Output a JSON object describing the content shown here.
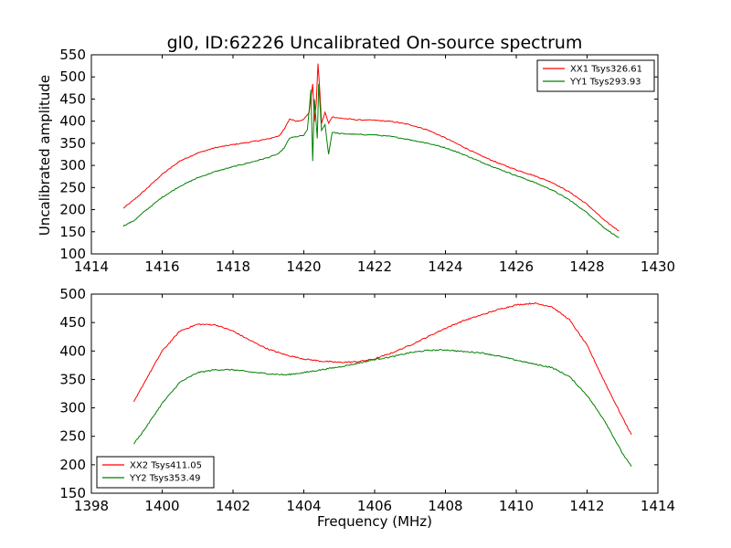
{
  "chart_data": [
    {
      "type": "line",
      "title": "gl0, ID:62226 Uncalibrated On-source spectrum",
      "xlabel": "",
      "ylabel": "Uncalibrated amplitude",
      "xlim": [
        1414,
        1430
      ],
      "ylim": [
        100,
        550
      ],
      "xticks": [
        1414,
        1416,
        1418,
        1420,
        1422,
        1424,
        1426,
        1428,
        1430
      ],
      "yticks": [
        100,
        150,
        200,
        250,
        300,
        350,
        400,
        450,
        500,
        550
      ],
      "legend_position": "top-right",
      "series": [
        {
          "name": "XX1 Tsys326.61",
          "color": "#ff0000",
          "points": [
            [
              1414.9,
              203
            ],
            [
              1415.2,
              222
            ],
            [
              1415.5,
              243
            ],
            [
              1416.0,
              280
            ],
            [
              1416.5,
              310
            ],
            [
              1417.0,
              328
            ],
            [
              1417.5,
              340
            ],
            [
              1418.0,
              347
            ],
            [
              1418.5,
              353
            ],
            [
              1419.0,
              360
            ],
            [
              1419.3,
              367
            ],
            [
              1419.45,
              382
            ],
            [
              1419.6,
              405
            ],
            [
              1419.8,
              400
            ],
            [
              1420.0,
              404
            ],
            [
              1420.15,
              420
            ],
            [
              1420.25,
              485
            ],
            [
              1420.3,
              400
            ],
            [
              1420.35,
              440
            ],
            [
              1420.4,
              530
            ],
            [
              1420.45,
              470
            ],
            [
              1420.5,
              395
            ],
            [
              1420.6,
              420
            ],
            [
              1420.7,
              395
            ],
            [
              1420.8,
              410
            ],
            [
              1421.0,
              407
            ],
            [
              1421.5,
              403
            ],
            [
              1422.0,
              402
            ],
            [
              1422.5,
              399
            ],
            [
              1423.0,
              392
            ],
            [
              1423.5,
              380
            ],
            [
              1424.0,
              362
            ],
            [
              1424.5,
              342
            ],
            [
              1425.0,
              322
            ],
            [
              1425.5,
              305
            ],
            [
              1426.0,
              290
            ],
            [
              1426.5,
              277
            ],
            [
              1427.0,
              262
            ],
            [
              1427.5,
              240
            ],
            [
              1428.0,
              212
            ],
            [
              1428.5,
              175
            ],
            [
              1428.9,
              152
            ]
          ]
        },
        {
          "name": "YY1 Tsys293.93",
          "color": "#008000",
          "points": [
            [
              1414.9,
              163
            ],
            [
              1415.2,
              175
            ],
            [
              1415.5,
              196
            ],
            [
              1416.0,
              228
            ],
            [
              1416.5,
              253
            ],
            [
              1417.0,
              272
            ],
            [
              1417.5,
              286
            ],
            [
              1418.0,
              297
            ],
            [
              1418.5,
              307
            ],
            [
              1419.0,
              318
            ],
            [
              1419.3,
              327
            ],
            [
              1419.45,
              340
            ],
            [
              1419.6,
              362
            ],
            [
              1419.8,
              365
            ],
            [
              1420.0,
              368
            ],
            [
              1420.1,
              380
            ],
            [
              1420.2,
              470
            ],
            [
              1420.25,
              310
            ],
            [
              1420.3,
              450
            ],
            [
              1420.38,
              360
            ],
            [
              1420.42,
              485
            ],
            [
              1420.5,
              380
            ],
            [
              1420.6,
              392
            ],
            [
              1420.7,
              325
            ],
            [
              1420.8,
              375
            ],
            [
              1421.0,
              372
            ],
            [
              1421.5,
              370
            ],
            [
              1422.0,
              369
            ],
            [
              1422.5,
              365
            ],
            [
              1423.0,
              358
            ],
            [
              1423.5,
              350
            ],
            [
              1424.0,
              340
            ],
            [
              1424.5,
              325
            ],
            [
              1425.0,
              308
            ],
            [
              1425.5,
              292
            ],
            [
              1426.0,
              277
            ],
            [
              1426.5,
              262
            ],
            [
              1427.0,
              245
            ],
            [
              1427.5,
              222
            ],
            [
              1428.0,
              193
            ],
            [
              1428.5,
              158
            ],
            [
              1428.9,
              136
            ]
          ]
        }
      ]
    },
    {
      "type": "line",
      "title": "",
      "xlabel": "Frequency (MHz)",
      "ylabel": "",
      "xlim": [
        1398,
        1414
      ],
      "ylim": [
        150,
        500
      ],
      "xticks": [
        1398,
        1400,
        1402,
        1404,
        1406,
        1408,
        1410,
        1412,
        1414
      ],
      "yticks": [
        150,
        200,
        250,
        300,
        350,
        400,
        450,
        500
      ],
      "legend_position": "bottom-left",
      "series": [
        {
          "name": "XX2 Tsys411.05",
          "color": "#ff0000",
          "points": [
            [
              1399.2,
              310
            ],
            [
              1399.5,
              345
            ],
            [
              1400.0,
              400
            ],
            [
              1400.5,
              435
            ],
            [
              1401.0,
              447
            ],
            [
              1401.5,
              446
            ],
            [
              1402.0,
              435
            ],
            [
              1402.5,
              418
            ],
            [
              1403.0,
              403
            ],
            [
              1403.5,
              393
            ],
            [
              1404.0,
              386
            ],
            [
              1404.5,
              382
            ],
            [
              1405.0,
              380
            ],
            [
              1405.5,
              381
            ],
            [
              1406.0,
              386
            ],
            [
              1406.5,
              397
            ],
            [
              1407.0,
              410
            ],
            [
              1407.5,
              425
            ],
            [
              1408.0,
              440
            ],
            [
              1408.5,
              453
            ],
            [
              1409.0,
              463
            ],
            [
              1409.5,
              473
            ],
            [
              1410.0,
              481
            ],
            [
              1410.5,
              484
            ],
            [
              1411.0,
              478
            ],
            [
              1411.5,
              455
            ],
            [
              1412.0,
              410
            ],
            [
              1412.5,
              345
            ],
            [
              1413.0,
              283
            ],
            [
              1413.25,
              253
            ]
          ]
        },
        {
          "name": "YY2 Tsys353.49",
          "color": "#008000",
          "points": [
            [
              1399.2,
              237
            ],
            [
              1399.5,
              262
            ],
            [
              1400.0,
              308
            ],
            [
              1400.5,
              345
            ],
            [
              1401.0,
              362
            ],
            [
              1401.5,
              367
            ],
            [
              1402.0,
              367
            ],
            [
              1402.5,
              363
            ],
            [
              1403.0,
              360
            ],
            [
              1403.5,
              358
            ],
            [
              1404.0,
              362
            ],
            [
              1404.5,
              367
            ],
            [
              1405.0,
              372
            ],
            [
              1405.5,
              378
            ],
            [
              1406.0,
              385
            ],
            [
              1406.5,
              390
            ],
            [
              1407.0,
              397
            ],
            [
              1407.5,
              401
            ],
            [
              1408.0,
              402
            ],
            [
              1408.5,
              399
            ],
            [
              1409.0,
              397
            ],
            [
              1409.5,
              391
            ],
            [
              1410.0,
              384
            ],
            [
              1410.5,
              377
            ],
            [
              1411.0,
              371
            ],
            [
              1411.5,
              355
            ],
            [
              1412.0,
              322
            ],
            [
              1412.5,
              277
            ],
            [
              1413.0,
              220
            ],
            [
              1413.25,
              197
            ]
          ]
        }
      ]
    }
  ]
}
